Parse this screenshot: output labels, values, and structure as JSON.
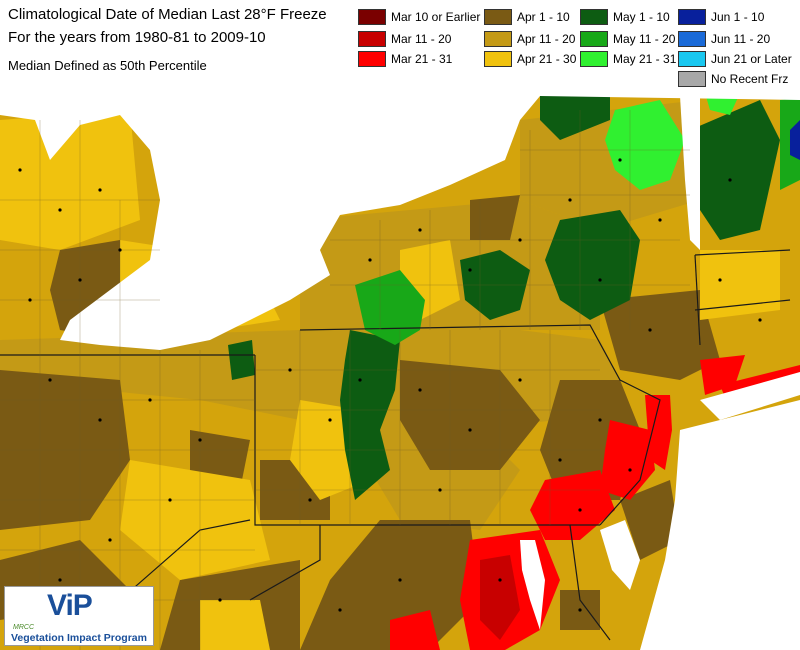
{
  "title": {
    "line1": "Climatological Date of Median Last 28°F Freeze",
    "line2": "For the years from 1980-81 to 2009-10",
    "subtitle": "Median Defined as 50th Percentile"
  },
  "legend": [
    {
      "label": "Mar 10 or Earlier",
      "color": "#7a0000"
    },
    {
      "label": "Mar 11 - 20",
      "color": "#c80000"
    },
    {
      "label": "Mar 21 - 31",
      "color": "#ff0000"
    },
    {
      "label": "Apr 1 - 10",
      "color": "#7a5a14"
    },
    {
      "label": "Apr 11 - 20",
      "color": "#c49a16"
    },
    {
      "label": "Apr 21 - 30",
      "color": "#f0c20e"
    },
    {
      "label": "May 1 - 10",
      "color": "#0d5c12"
    },
    {
      "label": "May 11 - 20",
      "color": "#18a818"
    },
    {
      "label": "May 21 - 31",
      "color": "#30f030"
    },
    {
      "label": "Jun 1 - 10",
      "color": "#08209c"
    },
    {
      "label": "Jun 11 - 20",
      "color": "#1a6ad8"
    },
    {
      "label": "Jun 21 or Later",
      "color": "#1ac8f0"
    },
    {
      "label": "No Recent Frz",
      "color": "#a8a8a8"
    }
  ],
  "logo": {
    "org": "MRCC",
    "name": "ViP",
    "tagline": "Vegetation Impact Program"
  },
  "map_colors": {
    "background": "#d4a40c",
    "water": "#ffffff",
    "border": "#555555",
    "station": "#000000"
  }
}
